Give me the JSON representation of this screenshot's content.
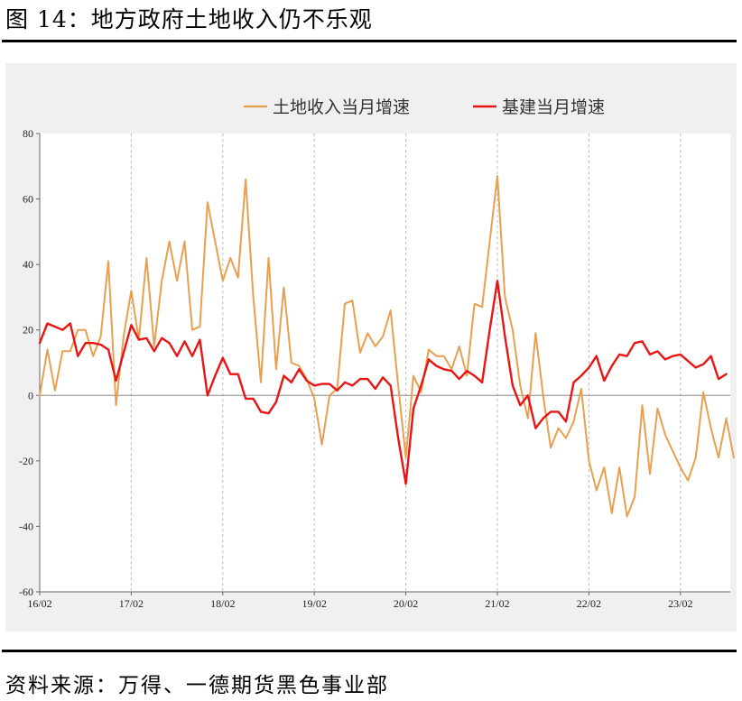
{
  "header": {
    "title": "图 14：地方政府土地收入仍不乐观"
  },
  "footer": {
    "source": "资料来源：万得、一德期货黑色事业部"
  },
  "colors": {
    "land": "#e8a050",
    "infra": "#e81515",
    "grid": "#bbbbbb",
    "axis": "#666666",
    "plot_bg": "#ffffff",
    "panel_bg": "#f0f0f0"
  },
  "chart_data": {
    "type": "line",
    "title": "",
    "xlabel": "",
    "ylabel": "",
    "ylim": [
      -60,
      80
    ],
    "yticks": [
      "80",
      "60",
      "40",
      "20",
      "0",
      "-20",
      "-40",
      "-60"
    ],
    "x_start": "2016-02",
    "x_step": "month",
    "x_ticks": [
      {
        "label": "16/02",
        "index": 0
      },
      {
        "label": "17/02",
        "index": 12
      },
      {
        "label": "18/02",
        "index": 24
      },
      {
        "label": "19/02",
        "index": 36
      },
      {
        "label": "20/02",
        "index": 48
      },
      {
        "label": "21/02",
        "index": 60
      },
      {
        "label": "22/02",
        "index": 72
      },
      {
        "label": "23/02",
        "index": 84
      }
    ],
    "legend": {
      "position": "top-center"
    },
    "series": [
      {
        "name": "土地收入当月增速",
        "key": "land",
        "values": [
          0,
          14,
          1.5,
          13.5,
          13.5,
          20,
          20,
          12,
          18,
          41,
          -3,
          18,
          32,
          17,
          42,
          15,
          35,
          47,
          35,
          47,
          20,
          21,
          59,
          47,
          35,
          42,
          36,
          66,
          30,
          4,
          42,
          8,
          33,
          10,
          9,
          5,
          -1,
          -15,
          0,
          2,
          28,
          29,
          13,
          19,
          15,
          18,
          26,
          3,
          -19,
          6,
          1,
          14,
          12,
          12,
          8,
          15,
          6,
          28,
          27,
          47,
          67,
          30,
          20,
          3,
          -7,
          19,
          0,
          -16,
          -10,
          -13,
          -8,
          2,
          -20,
          -29,
          -22,
          -36,
          -22,
          -37,
          -31,
          -3,
          -24,
          -4,
          -12,
          -17,
          -22,
          -26,
          -19,
          1,
          -10,
          -19,
          -7,
          -19
        ]
      },
      {
        "name": "基建当月增速",
        "key": "infra",
        "values": [
          16,
          22,
          21,
          20,
          22,
          12,
          16,
          16,
          15.5,
          14,
          4.5,
          13,
          21.5,
          17,
          17.5,
          13.5,
          17.5,
          16,
          12,
          16.5,
          12,
          17,
          0,
          6,
          11.5,
          6.5,
          6.5,
          -1,
          -1,
          -5,
          -5.5,
          -2,
          6,
          4,
          8,
          4.5,
          3,
          3.5,
          3.5,
          1.5,
          4,
          3,
          5,
          5,
          2,
          5.5,
          3,
          -13,
          -27,
          -4,
          3,
          11,
          9,
          8,
          7.5,
          5,
          7.5,
          6,
          4,
          20,
          35,
          18,
          3,
          -3,
          0,
          -10,
          -7,
          -5,
          -5,
          -8,
          4,
          6,
          8.5,
          12,
          4.5,
          9,
          12.5,
          12,
          16,
          16.5,
          12.5,
          13.5,
          11,
          12,
          12.5,
          10.5,
          8.5,
          9.5,
          12,
          5,
          6.5
        ]
      }
    ]
  }
}
